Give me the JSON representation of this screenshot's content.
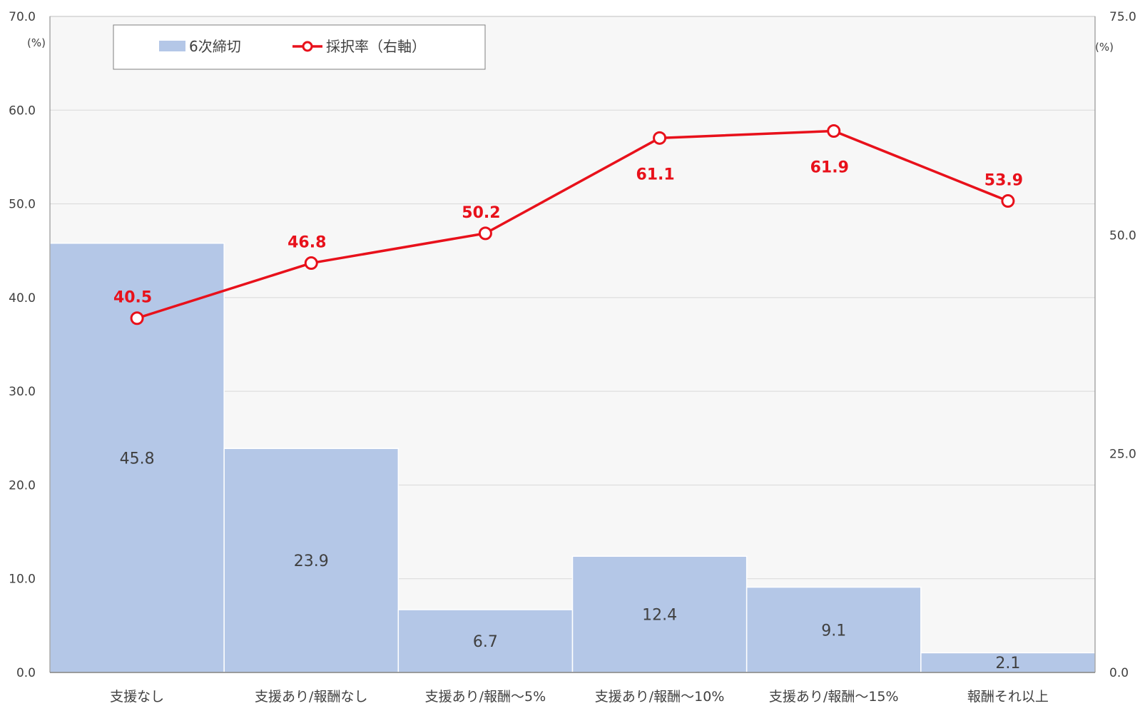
{
  "chart_data": {
    "type": "bar",
    "categories": [
      "支援なし",
      "支援あり/報酬なし",
      "支援あり/報酬〜5%",
      "支援あり/報酬〜10%",
      "支援あり/報酬〜15%",
      "報酬それ以上"
    ],
    "series": [
      {
        "name": "6次締切",
        "type": "bar",
        "axis": "left",
        "values": [
          45.8,
          23.9,
          6.7,
          12.4,
          9.1,
          2.1
        ],
        "color": "#b4c7e7"
      },
      {
        "name": "採択率（右軸）",
        "type": "line",
        "axis": "right",
        "values": [
          40.5,
          46.8,
          50.2,
          61.1,
          61.9,
          53.9
        ],
        "color": "#e8111b"
      }
    ],
    "y_left": {
      "unit": "(%)",
      "ylim": [
        0,
        70
      ],
      "ticks": [
        "0.0",
        "10.0",
        "20.0",
        "30.0",
        "40.0",
        "50.0",
        "60.0",
        "70.0"
      ]
    },
    "y_right": {
      "unit": "(%)",
      "ylim": [
        0,
        75
      ],
      "ticks": [
        "0.0",
        "25.0",
        "50.0",
        "75.0"
      ]
    },
    "grid": true,
    "legend_position": "top-left",
    "colors": {
      "plot_bg": "#f7f7f7",
      "grid": "#d9d9d9",
      "axis": "#404040"
    }
  }
}
